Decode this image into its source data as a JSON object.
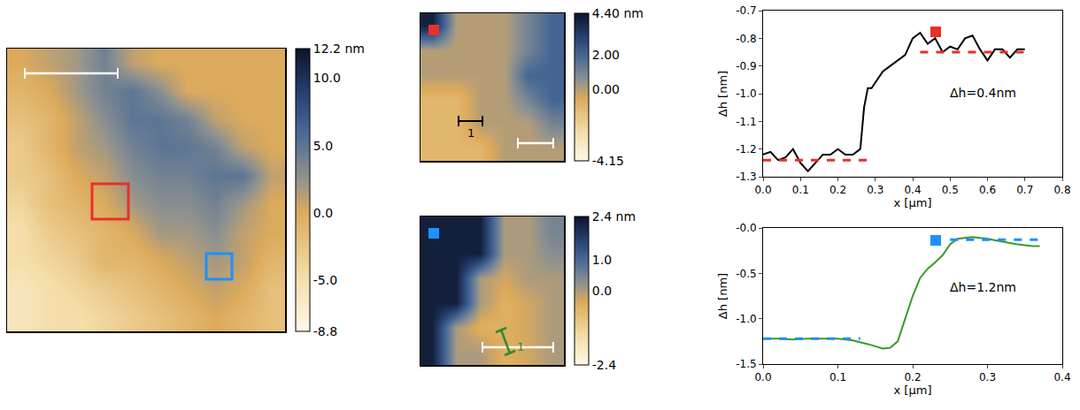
{
  "chart_data": [
    {
      "type": "heatmap",
      "tick_labels": false,
      "grid": false,
      "z": [
        [
          0,
          1,
          2,
          4,
          1,
          0,
          0,
          0,
          0,
          0
        ],
        [
          -1,
          0,
          2,
          4,
          5,
          3,
          0,
          0,
          0,
          0
        ],
        [
          -2,
          -1,
          1,
          3,
          5,
          5,
          4,
          1,
          0,
          0
        ],
        [
          -3,
          -1,
          1,
          2,
          4,
          5,
          5,
          4,
          1,
          0
        ],
        [
          -3,
          -2,
          0,
          1,
          3,
          4,
          4,
          5,
          5,
          1
        ],
        [
          -4,
          -2,
          -1,
          0,
          2,
          3,
          3,
          4,
          2,
          0
        ],
        [
          -5,
          -3,
          -2,
          -1,
          0,
          2,
          2,
          3,
          1,
          0
        ],
        [
          -5,
          -4,
          -3,
          -1,
          -1,
          0,
          1,
          2,
          1,
          -1
        ],
        [
          -6,
          -5,
          -4,
          -3,
          -2,
          -1,
          0,
          1,
          0,
          -2
        ],
        [
          -6,
          -5,
          -5,
          -4,
          -3,
          -2,
          -1,
          0,
          -1,
          -2
        ]
      ],
      "zlim": [
        -8.8,
        12.2
      ],
      "colorbar_ticks": [
        {
          "value": 12.2,
          "label": "12.2 nm"
        },
        {
          "value": 10,
          "label": "10.0"
        },
        {
          "value": 5,
          "label": "5.0"
        },
        {
          "value": 0,
          "label": "0.0"
        },
        {
          "value": -5,
          "label": "-5.0"
        },
        -8.8
      ]
    },
    {
      "type": "heatmap",
      "tick_labels": false,
      "grid": false,
      "z": [
        [
          4,
          0,
          0,
          0,
          1,
          2
        ],
        [
          0,
          0,
          0,
          0,
          1,
          2
        ],
        [
          0,
          0,
          0,
          0,
          2,
          2
        ],
        [
          -1,
          -1,
          0,
          0,
          1,
          2
        ],
        [
          -1,
          -1,
          0,
          0,
          0,
          1
        ],
        [
          -1,
          -1,
          -1,
          0,
          0,
          0
        ]
      ],
      "zlim": [
        -4.15,
        4.4
      ],
      "colorbar_ticks": [
        {
          "value": 4.4,
          "label": "4.40 nm"
        },
        {
          "value": 2,
          "label": "2.00"
        },
        {
          "value": 0,
          "label": "0.00"
        },
        -4.15
      ],
      "annotations": [
        "1"
      ]
    },
    {
      "type": "heatmap",
      "tick_labels": false,
      "grid": false,
      "z": [
        [
          2.2,
          2.2,
          2.2,
          0,
          0,
          0.5
        ],
        [
          2.2,
          2.2,
          2.2,
          0,
          0,
          0.3
        ],
        [
          2.2,
          2.2,
          0,
          -0.3,
          0,
          0
        ],
        [
          2.2,
          2.2,
          0,
          -0.5,
          -0.3,
          0
        ],
        [
          2.2,
          0,
          -0.5,
          -0.5,
          -0.3,
          0
        ],
        [
          2.2,
          0,
          0,
          -0.5,
          -0.3,
          0
        ]
      ],
      "zlim": [
        -2.4,
        2.4
      ],
      "colorbar_ticks": [
        {
          "value": 2.4,
          "label": "2.4 nm"
        },
        {
          "value": 1,
          "label": "1.0"
        },
        {
          "value": 0,
          "label": "0.0"
        },
        -2.4
      ],
      "annotations": [
        "1"
      ]
    },
    {
      "type": "line",
      "grid": false,
      "x_label": "x [μm]",
      "y_label": "Δh [nm]",
      "xlim": [
        0,
        0.8
      ],
      "ylim": [
        -1.3,
        -0.7
      ],
      "xticks": [
        {
          "value": 0,
          "label": "0.0"
        },
        0.1,
        0.2,
        0.3,
        0.4,
        0.5,
        0.6,
        0.7,
        0.8
      ],
      "yticks": [
        -0.7,
        -0.8,
        -0.9,
        {
          "value": -1,
          "label": "-1.0"
        },
        -1.1,
        -1.2,
        -1.3
      ],
      "annotations": [
        "Δh=0.4nm"
      ],
      "series": [
        {
          "color": "#000000",
          "line_style": "solid",
          "x": [
            0,
            0.02,
            0.04,
            0.06,
            0.08,
            0.1,
            0.12,
            0.14,
            0.16,
            0.18,
            0.2,
            0.22,
            0.24,
            0.26,
            0.27,
            0.28,
            0.29,
            0.3,
            0.32,
            0.34,
            0.36,
            0.38,
            0.4,
            0.42,
            0.44,
            0.46,
            0.48,
            0.5,
            0.52,
            0.54,
            0.56,
            0.58,
            0.6,
            0.62,
            0.64,
            0.66,
            0.68,
            0.7
          ],
          "values": [
            -1.22,
            -1.21,
            -1.24,
            -1.23,
            -1.2,
            -1.25,
            -1.28,
            -1.25,
            -1.22,
            -1.22,
            -1.2,
            -1.22,
            -1.22,
            -1.2,
            -1.05,
            -0.98,
            -0.98,
            -0.96,
            -0.92,
            -0.9,
            -0.88,
            -0.86,
            -0.8,
            -0.78,
            -0.82,
            -0.8,
            -0.85,
            -0.83,
            -0.84,
            -0.8,
            -0.79,
            -0.84,
            -0.88,
            -0.84,
            -0.84,
            -0.87,
            -0.84,
            -0.84
          ]
        },
        {
          "color": "#e8302a",
          "line_style": "dashed",
          "x": [
            0,
            0.28
          ],
          "values": [
            -1.24,
            -1.24
          ]
        },
        {
          "color": "#e8302a",
          "line_style": "dashed",
          "x": [
            0.42,
            0.7
          ],
          "values": [
            -0.85,
            -0.85
          ]
        }
      ]
    },
    {
      "type": "line",
      "grid": false,
      "x_label": "x [μm]",
      "y_label": "Δh [nm]",
      "xlim": [
        0,
        0.4
      ],
      "ylim": [
        -1.5,
        0
      ],
      "xticks": [
        {
          "value": 0,
          "label": "0.0"
        },
        0.1,
        0.2,
        0.3,
        0.4
      ],
      "yticks": [
        {
          "value": 0,
          "label": "-0.0"
        },
        -0.5,
        {
          "value": -1,
          "label": "-1.0"
        },
        -1.5
      ],
      "annotations": [
        "Δh=1.2nm"
      ],
      "series": [
        {
          "color": "#3a9a2a",
          "line_style": "solid",
          "x": [
            0,
            0.02,
            0.04,
            0.06,
            0.08,
            0.1,
            0.12,
            0.14,
            0.16,
            0.17,
            0.18,
            0.19,
            0.2,
            0.21,
            0.22,
            0.23,
            0.24,
            0.25,
            0.26,
            0.28,
            0.3,
            0.32,
            0.34,
            0.36,
            0.37
          ],
          "values": [
            -1.22,
            -1.22,
            -1.23,
            -1.22,
            -1.22,
            -1.22,
            -1.24,
            -1.28,
            -1.33,
            -1.32,
            -1.25,
            -1.0,
            -0.75,
            -0.55,
            -0.45,
            -0.38,
            -0.3,
            -0.18,
            -0.12,
            -0.1,
            -0.12,
            -0.15,
            -0.18,
            -0.2,
            -0.2
          ]
        },
        {
          "color": "#1e90ff",
          "line_style": "dashed",
          "x": [
            0,
            0.13
          ],
          "values": [
            -1.22,
            -1.22
          ]
        },
        {
          "color": "#1e90ff",
          "line_style": "dashed",
          "x": [
            0.25,
            0.37
          ],
          "values": [
            -0.13,
            -0.13
          ]
        }
      ]
    }
  ]
}
